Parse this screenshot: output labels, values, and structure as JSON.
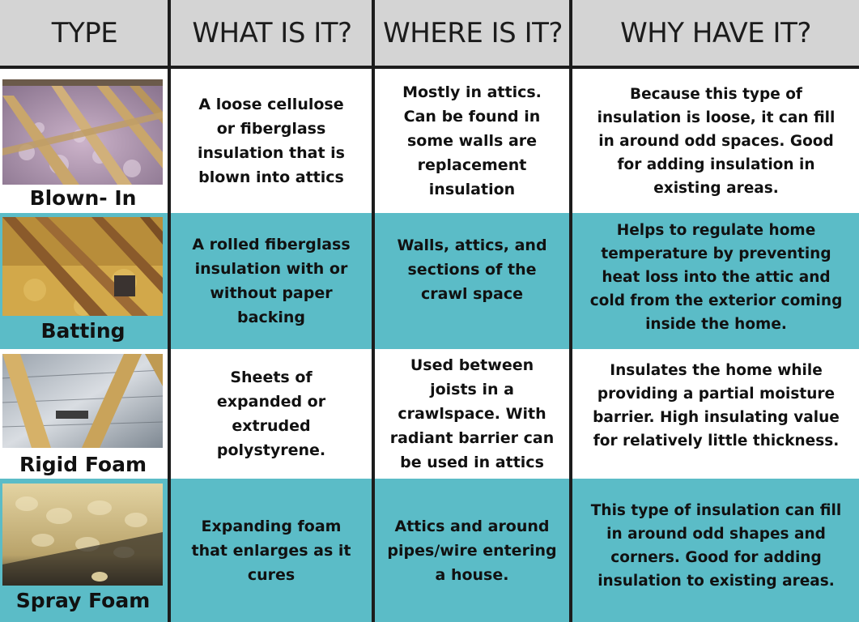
{
  "header": {
    "type": "TYPE",
    "what": "WHAT IS IT?",
    "where": "WHERE IS IT?",
    "why": "WHY HAVE IT?"
  },
  "rows": [
    {
      "type": "Blown- In",
      "what": "A loose cellulose or fiberglass insulation that is blown into attics",
      "where": "Mostly in attics. Can be found in some walls are replacement insulation",
      "why": "Because this type of insulation is loose, it can fill in around odd spaces. Good for adding insulation in existing areas."
    },
    {
      "type": "Batting",
      "what": "A rolled fiberglass insulation with or without paper backing",
      "where": "Walls, attics, and sections of the crawl space",
      "why": "Helps to regulate home temperature by preventing heat loss into the attic and cold from the exterior coming inside the home."
    },
    {
      "type": "Rigid Foam",
      "what": "Sheets of expanded or extruded polystyrene.",
      "where": "Used between joists in a crawlspace. With radiant barrier can be used in attics",
      "why": "Insulates the home while providing a partial moisture barrier. High insulating value for relatively little thickness."
    },
    {
      "type": "Spray Foam",
      "what": "Expanding foam that enlarges as it cures",
      "where": "Attics and around pipes/wire entering a house.",
      "why": "This type of insulation can fill in around odd shapes and corners. Good for adding insulation to existing areas."
    }
  ],
  "colors": {
    "header_bg": "#d4d4d4",
    "teal_row": "#5bbcc7",
    "white_row": "#ffffff",
    "grid_line": "#1c1c1c",
    "text": "#111111"
  }
}
